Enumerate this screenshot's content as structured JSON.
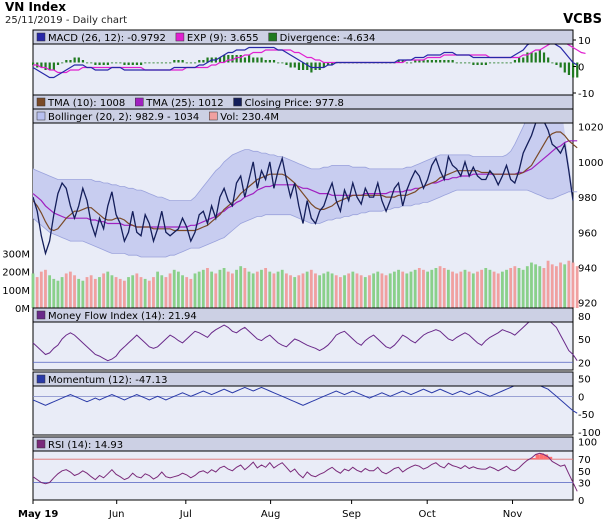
{
  "header": {
    "title": "VN Index",
    "subtitle": "25/11/2019 - Daily chart",
    "brand": "VCBS"
  },
  "colors": {
    "panel_bg": "#e9ecf7",
    "legend_bg": "#ccd0e4",
    "price_line": "#141e5a",
    "tma10": "#7a4a28",
    "tma25": "#a020c0",
    "bollinger_fill": "#c8cdf0",
    "bollinger_line": "#9aa2dc",
    "macd": "#2828a8",
    "exp": "#e020d0",
    "divergence": "#207a20",
    "vol_up": "#8ad08a",
    "vol_down": "#f0a0a0",
    "mfi_line": "#6a2a8a",
    "momentum_line": "#2a3aa8",
    "rsi_line": "#7a2a7a",
    "rsi_fill": "#ff7070",
    "ref_red": "#e07070",
    "ref_blue": "#5060c0"
  },
  "panels": {
    "macd": {
      "legend": [
        {
          "label": "MACD (26, 12): -0.9792",
          "color": "#2828a8"
        },
        {
          "label": "EXP (9): 3.655",
          "color": "#e020d0"
        },
        {
          "label": "Divergence: -4.634",
          "color": "#207a20"
        }
      ],
      "ticks": [
        "10",
        "0",
        "-10"
      ]
    },
    "price": {
      "legend_row1": [
        {
          "label": "TMA (10): 1008",
          "color": "#7a4a28"
        },
        {
          "label": "TMA (25): 1012",
          "color": "#a020c0"
        },
        {
          "label": "Closing Price: 977.8",
          "color": "#141e5a"
        }
      ],
      "legend_row2": [
        {
          "label": "Bollinger (20, 2): 982.9 - 1034",
          "color": "#b8c0f0"
        },
        {
          "label": "Vol: 230.4M",
          "color": "#f0a0a0"
        }
      ],
      "ticks": [
        "1020",
        "1000",
        "980",
        "960",
        "940",
        "920"
      ],
      "vol_ticks": [
        "300M",
        "200M",
        "100M",
        "0M"
      ]
    },
    "mfi": {
      "legend": [
        {
          "label": "Money Flow Index (14): 21.94",
          "color": "#6a2a8a"
        }
      ],
      "ticks": [
        "80",
        "50",
        "20"
      ]
    },
    "momentum": {
      "legend": [
        {
          "label": "Momentum (12): -47.13",
          "color": "#2a3aa8"
        }
      ],
      "ticks": [
        "50",
        "0",
        "-50",
        "-100"
      ]
    },
    "rsi": {
      "legend": [
        {
          "label": "RSI (14): 14.93",
          "color": "#7a2a7a"
        }
      ],
      "ticks": [
        "100",
        "70",
        "50",
        "30",
        "0"
      ]
    }
  },
  "x_axis": {
    "labels": [
      "May 19",
      "Jun",
      "Jul",
      "Aug",
      "Sep",
      "Oct",
      "Nov"
    ]
  },
  "chart_data": {
    "type": "line",
    "x_labels": [
      "May 19",
      "Jun",
      "Jul",
      "Aug",
      "Sep",
      "Oct",
      "Nov"
    ],
    "closing_price": [
      980,
      972,
      958,
      948,
      955,
      970,
      982,
      988,
      985,
      975,
      968,
      975,
      985,
      978,
      965,
      958,
      968,
      962,
      975,
      983,
      970,
      965,
      955,
      960,
      972,
      960,
      958,
      970,
      965,
      955,
      962,
      972,
      960,
      958,
      960,
      962,
      968,
      963,
      955,
      960,
      970,
      972,
      965,
      975,
      968,
      980,
      985,
      978,
      975,
      988,
      992,
      980,
      990,
      1000,
      985,
      995,
      990,
      1000,
      985,
      995,
      1002,
      990,
      980,
      988,
      975,
      965,
      978,
      968,
      965,
      972,
      975,
      982,
      988,
      978,
      972,
      984,
      978,
      988,
      980,
      976,
      985,
      980,
      980,
      988,
      978,
      972,
      978,
      985,
      988,
      975,
      984,
      990,
      995,
      992,
      985,
      990,
      998,
      1002,
      995,
      990,
      1003,
      998,
      996,
      992,
      1000,
      992,
      997,
      992,
      990,
      990,
      995,
      992,
      987,
      992,
      998,
      990,
      988,
      995,
      1005,
      1010,
      1015,
      1022,
      1024,
      1023,
      1018,
      1010,
      1008,
      1005,
      1010,
      995,
      978
    ],
    "tma10": [
      978,
      975,
      971,
      966,
      962,
      961,
      962,
      965,
      968,
      970,
      972,
      972,
      973,
      974,
      974,
      972,
      970,
      968,
      967,
      967,
      968,
      968,
      967,
      965,
      964,
      963,
      963,
      963,
      963,
      962,
      962,
      962,
      962,
      962,
      961,
      961,
      961,
      961,
      961,
      961,
      962,
      963,
      964,
      966,
      968,
      970,
      973,
      975,
      977,
      979,
      982,
      984,
      986,
      988,
      990,
      991,
      992,
      993,
      993,
      993,
      993,
      992,
      990,
      988,
      985,
      982,
      979,
      976,
      974,
      973,
      973,
      974,
      975,
      977,
      978,
      979,
      980,
      981,
      981,
      981,
      981,
      981,
      981,
      981,
      981,
      980,
      980,
      980,
      981,
      981,
      981,
      982,
      983,
      985,
      986,
      987,
      988,
      989,
      991,
      992,
      993,
      994,
      995,
      995,
      995,
      995,
      995,
      995,
      994,
      994,
      994,
      993,
      993,
      993,
      993,
      993,
      993,
      993,
      994,
      996,
      998,
      1002,
      1006,
      1010,
      1014,
      1016,
      1017,
      1017,
      1015,
      1012,
      1010,
      1008
    ],
    "tma25": [
      982,
      980,
      978,
      975,
      973,
      971,
      970,
      969,
      968,
      968,
      968,
      968,
      968,
      968,
      967,
      967,
      966,
      966,
      965,
      965,
      965,
      965,
      964,
      964,
      964,
      963,
      963,
      963,
      963,
      963,
      963,
      963,
      963,
      963,
      963,
      963,
      963,
      963,
      964,
      964,
      965,
      966,
      967,
      968,
      969,
      971,
      972,
      974,
      975,
      977,
      978,
      980,
      981,
      982,
      984,
      985,
      986,
      986,
      987,
      987,
      987,
      987,
      987,
      987,
      986,
      985,
      985,
      984,
      983,
      982,
      982,
      982,
      981,
      981,
      981,
      981,
      981,
      981,
      981,
      981,
      982,
      982,
      982,
      982,
      982,
      982,
      983,
      983,
      983,
      983,
      984,
      984,
      985,
      985,
      986,
      987,
      988,
      988,
      989,
      990,
      990,
      991,
      991,
      992,
      992,
      992,
      993,
      993,
      993,
      993,
      993,
      993,
      993,
      993,
      993,
      993,
      993,
      994,
      994,
      995,
      996,
      998,
      1000,
      1002,
      1004,
      1006,
      1008,
      1009,
      1011,
      1012,
      1012,
      1012
    ],
    "bollinger_upper": [
      996,
      995,
      994,
      993,
      992,
      991,
      990,
      990,
      990,
      990,
      990,
      990,
      990,
      990,
      990,
      989,
      989,
      988,
      988,
      987,
      987,
      986,
      986,
      985,
      985,
      984,
      984,
      983,
      982,
      981,
      980,
      980,
      979,
      978,
      978,
      978,
      978,
      978,
      978,
      980,
      983,
      986,
      989,
      992,
      995,
      997,
      1000,
      1002,
      1004,
      1005,
      1006,
      1007,
      1007,
      1006,
      1006,
      1005,
      1005,
      1004,
      1004,
      1003,
      1003,
      1002,
      1001,
      1000,
      999,
      998,
      997,
      996,
      996,
      996,
      997,
      997,
      998,
      998,
      998,
      998,
      998,
      997,
      997,
      997,
      997,
      996,
      996,
      996,
      996,
      996,
      996,
      996,
      996,
      996,
      997,
      997,
      998,
      999,
      1000,
      1001,
      1002,
      1003,
      1004,
      1004,
      1004,
      1004,
      1004,
      1004,
      1004,
      1004,
      1003,
      1003,
      1003,
      1003,
      1003,
      1003,
      1003,
      1003,
      1004,
      1006,
      1010,
      1015,
      1020,
      1025,
      1029,
      1032,
      1034,
      1035,
      1035,
      1035,
      1034,
      1034
    ],
    "bollinger_lower": [
      968,
      966,
      964,
      962,
      960,
      959,
      958,
      957,
      956,
      955,
      955,
      955,
      955,
      954,
      953,
      952,
      951,
      950,
      949,
      948,
      948,
      948,
      948,
      947,
      947,
      947,
      946,
      946,
      946,
      946,
      946,
      946,
      946,
      947,
      947,
      948,
      949,
      950,
      951,
      951,
      951,
      952,
      953,
      954,
      955,
      956,
      957,
      959,
      961,
      963,
      965,
      966,
      967,
      968,
      969,
      969,
      970,
      970,
      970,
      970,
      970,
      970,
      970,
      969,
      968,
      967,
      966,
      965,
      965,
      965,
      966,
      967,
      967,
      968,
      968,
      969,
      969,
      970,
      970,
      971,
      971,
      972,
      972,
      972,
      972,
      973,
      973,
      974,
      974,
      975,
      975,
      975,
      976,
      976,
      977,
      977,
      978,
      979,
      980,
      981,
      982,
      983,
      984,
      984,
      984,
      984,
      984,
      984,
      984,
      984,
      984,
      984,
      984,
      984,
      984,
      984,
      984,
      984,
      984,
      984,
      983,
      982,
      981,
      980,
      979,
      979,
      980,
      981,
      982,
      983,
      983,
      983
    ],
    "volume_m": [
      190,
      170,
      200,
      210,
      180,
      160,
      150,
      170,
      190,
      200,
      180,
      160,
      150,
      170,
      180,
      160,
      170,
      190,
      200,
      180,
      170,
      160,
      150,
      170,
      180,
      190,
      170,
      160,
      150,
      170,
      200,
      180,
      170,
      190,
      210,
      200,
      180,
      170,
      160,
      190,
      200,
      210,
      220,
      200,
      190,
      210,
      220,
      200,
      190,
      210,
      230,
      220,
      200,
      190,
      200,
      210,
      220,
      200,
      190,
      200,
      210,
      190,
      180,
      170,
      180,
      190,
      200,
      210,
      190,
      180,
      190,
      200,
      190,
      180,
      170,
      180,
      190,
      200,
      190,
      180,
      170,
      180,
      190,
      200,
      190,
      180,
      190,
      200,
      210,
      200,
      190,
      200,
      210,
      220,
      210,
      200,
      210,
      220,
      230,
      220,
      210,
      200,
      190,
      200,
      210,
      200,
      190,
      200,
      210,
      220,
      210,
      200,
      190,
      200,
      210,
      220,
      230,
      220,
      210,
      230,
      250,
      240,
      230,
      220,
      260,
      240,
      230,
      250,
      240,
      260,
      250,
      230
    ],
    "macd": [
      -2,
      -3,
      -4,
      -5,
      -6,
      -6,
      -5,
      -4,
      -3,
      -2,
      -1,
      -1,
      -1,
      -2,
      -2,
      -3,
      -3,
      -3,
      -3,
      -2,
      -2,
      -2,
      -3,
      -3,
      -3,
      -3,
      -3,
      -3,
      -3,
      -3,
      -3,
      -3,
      -3,
      -3,
      -2,
      -2,
      -2,
      -2,
      -2,
      -2,
      -1,
      -1,
      0,
      1,
      1,
      2,
      3,
      4,
      4,
      5,
      5,
      5,
      6,
      6,
      6,
      6,
      6,
      6,
      6,
      5,
      5,
      4,
      3,
      2,
      1,
      0,
      -1,
      -2,
      -2,
      -2,
      -2,
      -1,
      -1,
      0,
      0,
      0,
      0,
      0,
      0,
      0,
      0,
      0,
      0,
      0,
      0,
      0,
      0,
      0,
      1,
      1,
      1,
      1,
      2,
      2,
      2,
      3,
      3,
      3,
      3,
      4,
      4,
      4,
      3,
      3,
      3,
      3,
      2,
      2,
      2,
      2,
      2,
      2,
      2,
      2,
      2,
      2,
      3,
      4,
      5,
      7,
      8,
      9,
      10,
      10,
      9,
      8,
      7,
      6,
      4,
      2,
      0,
      -1
    ],
    "exp": [
      -1,
      -1,
      -2,
      -2,
      -3,
      -3,
      -4,
      -4,
      -4,
      -3,
      -3,
      -3,
      -2,
      -2,
      -2,
      -2,
      -2,
      -2,
      -2,
      -2,
      -2,
      -2,
      -2,
      -2,
      -2,
      -2,
      -2,
      -3,
      -3,
      -3,
      -3,
      -3,
      -3,
      -3,
      -3,
      -3,
      -3,
      -2,
      -2,
      -2,
      -2,
      -2,
      -2,
      -1,
      -1,
      0,
      0,
      1,
      1,
      2,
      2,
      3,
      3,
      4,
      4,
      4,
      5,
      5,
      5,
      5,
      5,
      5,
      5,
      4,
      4,
      3,
      2,
      2,
      1,
      1,
      0,
      0,
      0,
      0,
      0,
      0,
      0,
      0,
      0,
      0,
      0,
      0,
      0,
      0,
      0,
      0,
      0,
      0,
      0,
      0,
      1,
      1,
      1,
      1,
      1,
      2,
      2,
      2,
      2,
      3,
      3,
      3,
      3,
      3,
      3,
      3,
      3,
      3,
      3,
      3,
      2,
      2,
      2,
      2,
      2,
      2,
      2,
      2,
      3,
      3,
      4,
      5,
      5,
      6,
      7,
      8,
      8,
      8,
      8,
      7,
      6,
      5,
      4,
      3.655
    ],
    "mfi": [
      45,
      40,
      35,
      30,
      32,
      38,
      42,
      50,
      55,
      58,
      55,
      50,
      45,
      40,
      35,
      30,
      28,
      25,
      22,
      24,
      28,
      35,
      40,
      45,
      50,
      55,
      50,
      45,
      40,
      38,
      40,
      45,
      50,
      55,
      52,
      48,
      45,
      50,
      55,
      60,
      58,
      55,
      52,
      58,
      62,
      65,
      68,
      65,
      60,
      58,
      62,
      65,
      60,
      55,
      50,
      48,
      52,
      55,
      50,
      45,
      42,
      40,
      45,
      50,
      48,
      45,
      42,
      40,
      38,
      35,
      38,
      42,
      48,
      55,
      58,
      60,
      55,
      50,
      45,
      42,
      48,
      52,
      55,
      50,
      45,
      40,
      38,
      42,
      48,
      55,
      52,
      48,
      45,
      50,
      55,
      58,
      60,
      62,
      60,
      55,
      50,
      48,
      52,
      55,
      58,
      55,
      50,
      45,
      42,
      48,
      52,
      55,
      58,
      62,
      60,
      58,
      55,
      60,
      65,
      70,
      75,
      78,
      80,
      78,
      75,
      70,
      65,
      55,
      45,
      35,
      30,
      21.94
    ],
    "momentum": [
      -10,
      -15,
      -20,
      -25,
      -20,
      -15,
      -10,
      -5,
      0,
      5,
      0,
      -5,
      -10,
      -15,
      -10,
      -5,
      -10,
      -5,
      0,
      5,
      0,
      -5,
      -10,
      -5,
      0,
      5,
      0,
      -5,
      -10,
      -5,
      0,
      -5,
      -10,
      -5,
      0,
      5,
      10,
      5,
      0,
      5,
      10,
      15,
      10,
      5,
      10,
      15,
      20,
      15,
      10,
      15,
      20,
      25,
      20,
      15,
      20,
      25,
      20,
      15,
      10,
      5,
      0,
      -5,
      -10,
      -15,
      -20,
      -25,
      -20,
      -15,
      -10,
      -5,
      0,
      5,
      10,
      15,
      10,
      5,
      10,
      15,
      10,
      5,
      0,
      -5,
      0,
      5,
      10,
      5,
      0,
      5,
      10,
      15,
      10,
      5,
      10,
      15,
      20,
      15,
      10,
      15,
      20,
      15,
      10,
      5,
      10,
      15,
      10,
      5,
      10,
      15,
      10,
      5,
      0,
      5,
      10,
      15,
      20,
      25,
      30,
      35,
      40,
      45,
      40,
      35,
      30,
      25,
      20,
      10,
      0,
      -10,
      -20,
      -30,
      -40,
      -47.13
    ],
    "rsi": [
      40,
      35,
      30,
      28,
      30,
      38,
      45,
      50,
      52,
      48,
      42,
      45,
      50,
      46,
      40,
      35,
      42,
      38,
      45,
      52,
      44,
      40,
      35,
      38,
      46,
      40,
      38,
      45,
      42,
      36,
      40,
      48,
      40,
      38,
      40,
      42,
      46,
      43,
      38,
      42,
      48,
      50,
      46,
      52,
      48,
      55,
      58,
      53,
      50,
      56,
      60,
      52,
      58,
      65,
      55,
      60,
      56,
      64,
      55,
      60,
      64,
      56,
      48,
      53,
      44,
      38,
      48,
      42,
      40,
      44,
      47,
      52,
      56,
      50,
      46,
      53,
      50,
      56,
      51,
      48,
      54,
      50,
      50,
      56,
      48,
      45,
      49,
      54,
      56,
      48,
      53,
      57,
      60,
      58,
      53,
      56,
      61,
      64,
      58,
      55,
      63,
      59,
      57,
      54,
      59,
      54,
      57,
      54,
      53,
      53,
      57,
      54,
      50,
      54,
      58,
      52,
      50,
      55,
      62,
      68,
      72,
      78,
      80,
      78,
      74,
      66,
      62,
      58,
      60,
      45,
      30,
      14.93
    ]
  }
}
